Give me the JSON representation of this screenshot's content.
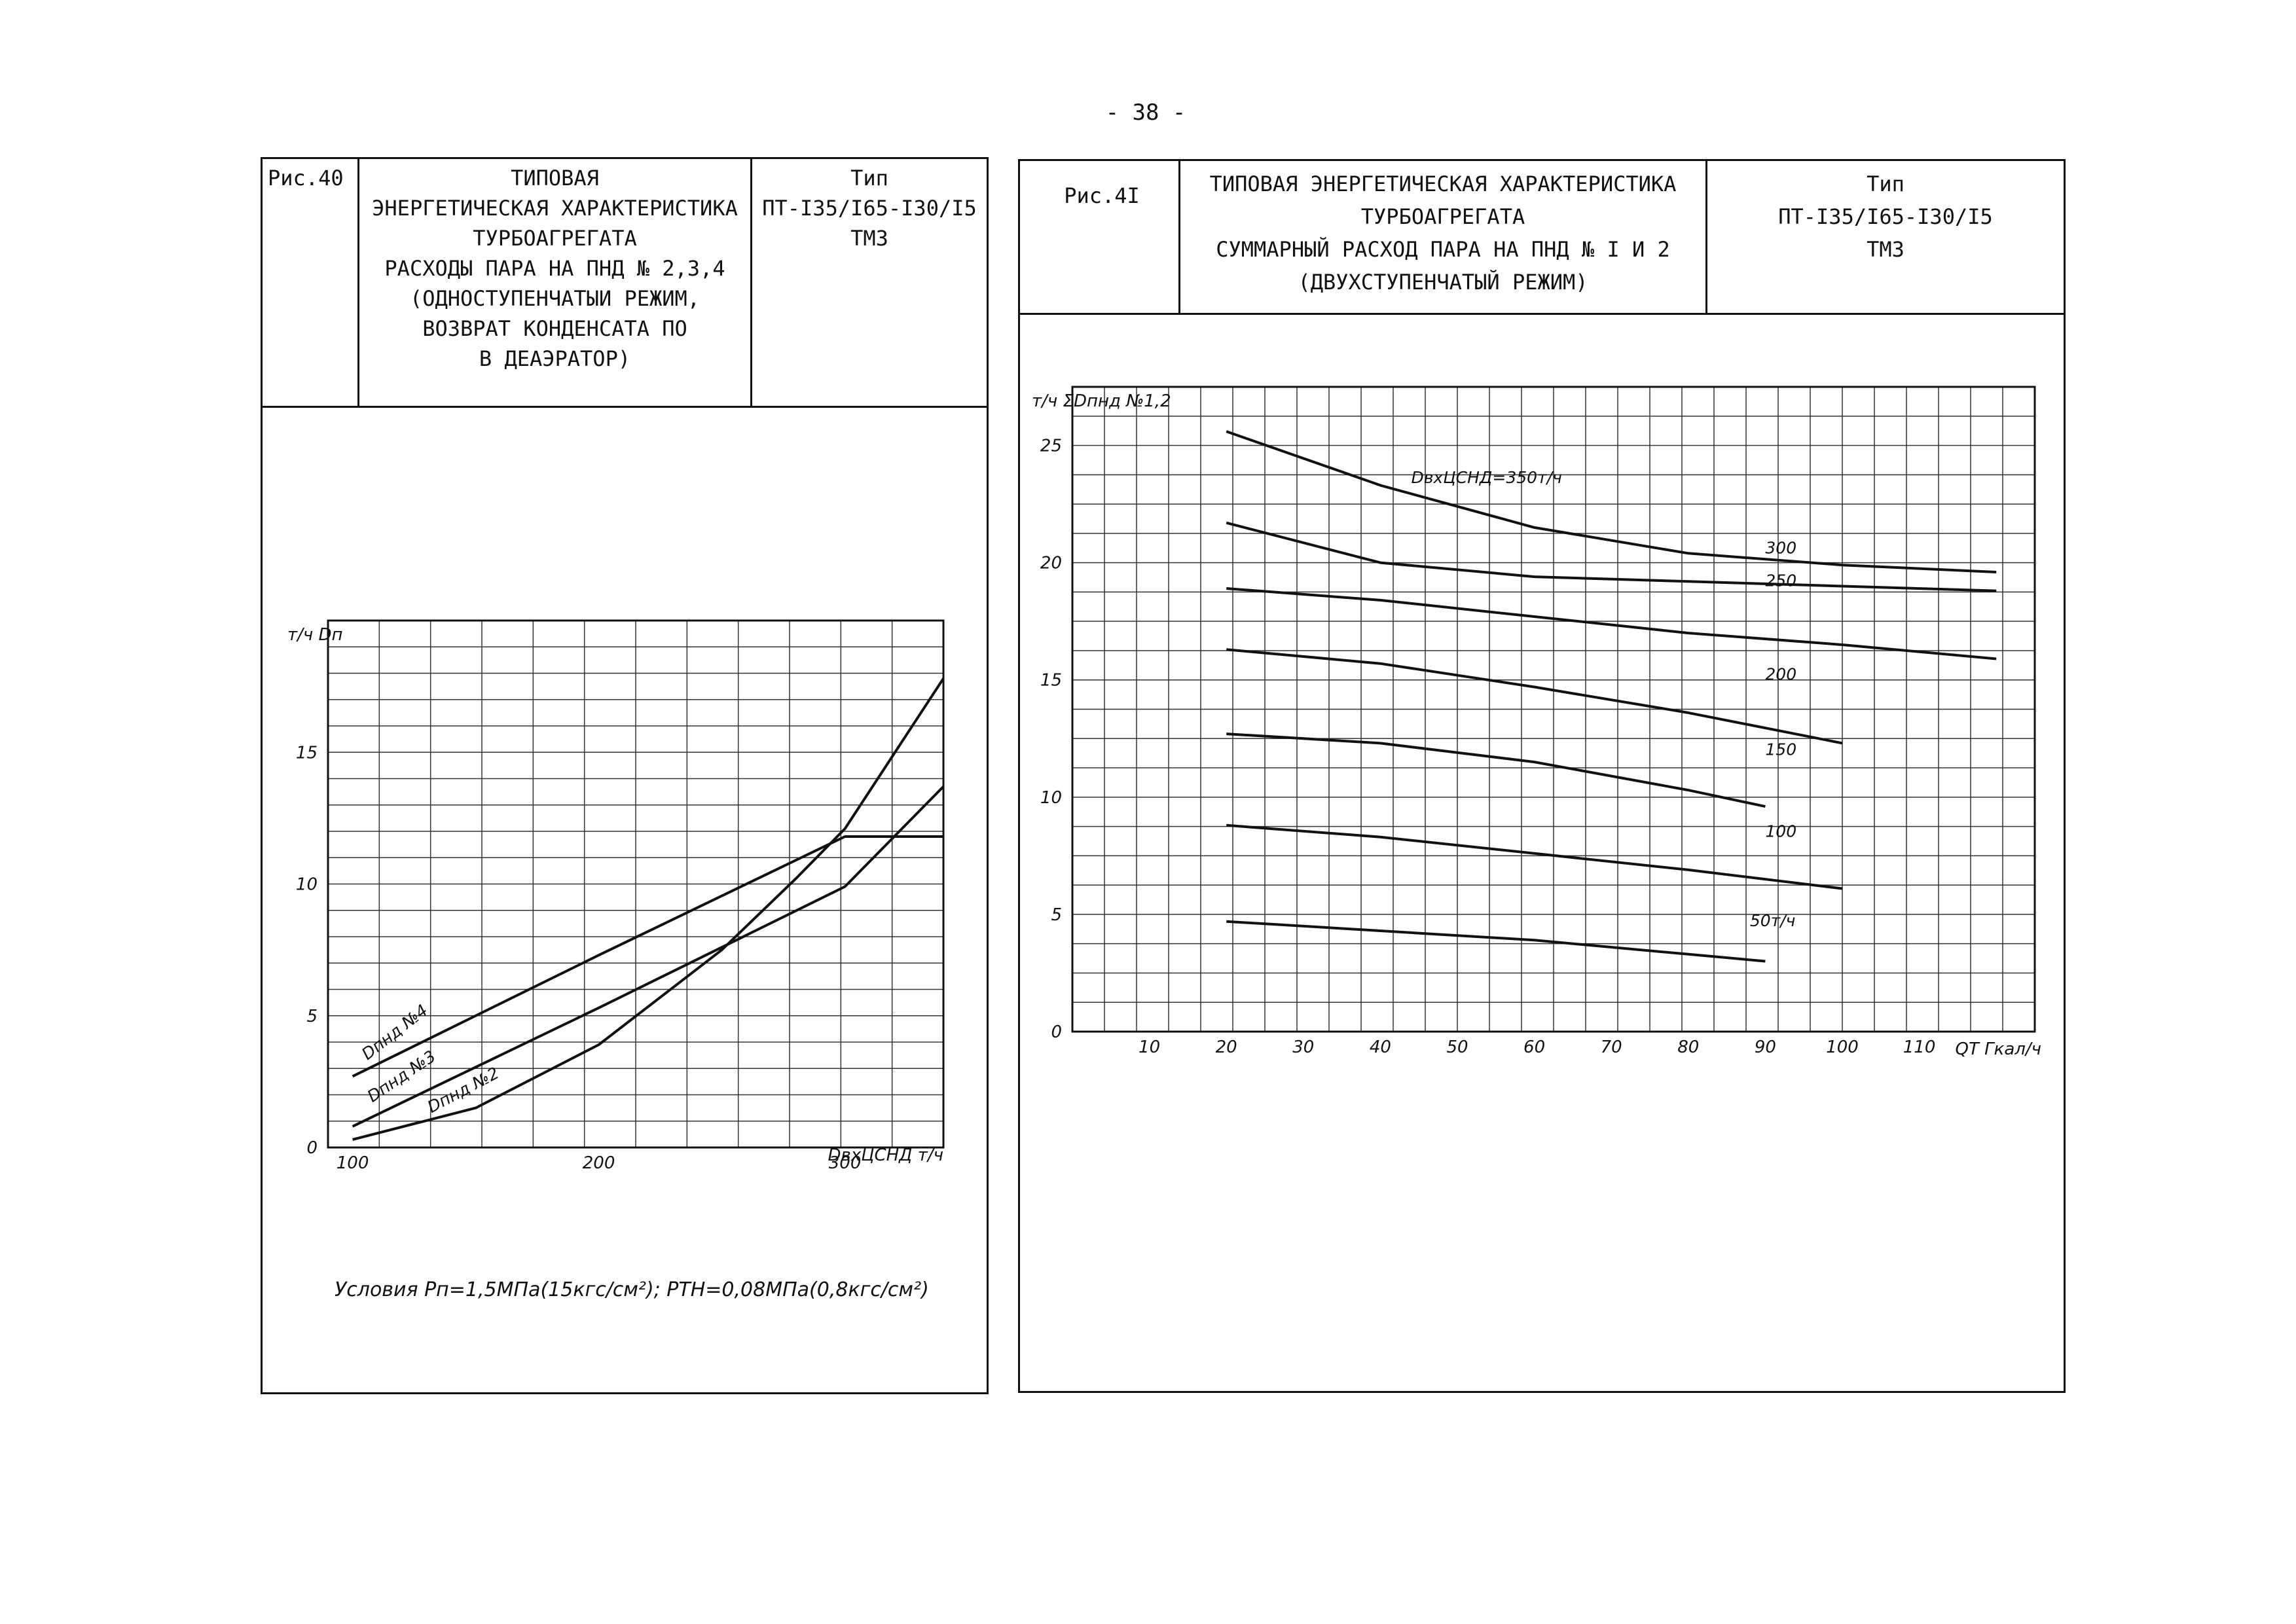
{
  "page_number": "- 38 -",
  "figures": [
    {
      "fig_label": "Рис.40",
      "title_lines": [
        "ТИПОВАЯ",
        "ЭНЕРГЕТИЧЕСКАЯ ХАРАКТЕРИСТИКА",
        "ТУРБОАГРЕГАТА",
        "РАСХОДЫ ПАРА НА ПНД № 2,3,4",
        "(ОДНОСТУПЕНЧАТЫИ РЕЖИМ,",
        "ВОЗВРАТ КОНДЕНСАТА ПО",
        "В ДЕАЭРАТОР)"
      ],
      "type_label": "Тип",
      "type_model": "ПТ-I35/I65-I30/I5",
      "type_maker": "ТМЗ",
      "conditions": "Условия  Pп=1,5МПа(15кгс/см²); PТН=0,08МПа(0,8кгс/см²)"
    },
    {
      "fig_label": "Рис.4I",
      "title_lines": [
        "ТИПОВАЯ ЭНЕРГЕТИЧЕСКАЯ ХАРАКТЕРИСТИКА",
        "ТУРБОАГРЕГАТА",
        "СУММАРНЫЙ РАСХОД ПАРА НА ПНД № I И 2",
        "(ДВУХСТУПЕНЧАТЫЙ РЕЖИМ)"
      ],
      "type_label": "Тип",
      "type_model": "ПТ-I35/I65-I30/I5",
      "type_maker": "ТМЗ"
    }
  ],
  "chart_data": [
    {
      "type": "line",
      "xlabel": "DвхЦСНД т/ч",
      "ylabel": "т/ч Dп",
      "xlim": [
        90,
        340
      ],
      "ylim": [
        0,
        20
      ],
      "x_ticks": [
        "100",
        "200",
        "300"
      ],
      "y_ticks": [
        "0",
        "5",
        "10",
        "15"
      ],
      "series": [
        {
          "name": "Dпнд №4",
          "x": [
            100,
            200,
            300,
            340
          ],
          "y": [
            2.7,
            7.3,
            11.8,
            11.8
          ]
        },
        {
          "name": "Dпнд №3",
          "x": [
            100,
            200,
            300,
            340
          ],
          "y": [
            0.8,
            5.3,
            9.9,
            13.7
          ]
        },
        {
          "name": "Dпнд №2",
          "x": [
            100,
            150,
            200,
            250,
            280,
            300,
            340
          ],
          "y": [
            0.3,
            1.5,
            3.9,
            7.5,
            10.2,
            12.1,
            17.8
          ]
        }
      ]
    },
    {
      "type": "line",
      "xlabel": "QТ Гкал/ч",
      "ylabel": "т/ч ΣDпнд №1,2",
      "xlim": [
        0,
        125
      ],
      "ylim": [
        0,
        27.5
      ],
      "x_ticks": [
        "10",
        "20",
        "30",
        "40",
        "50",
        "60",
        "70",
        "80",
        "90",
        "100",
        "110"
      ],
      "y_ticks": [
        "0",
        "5",
        "10",
        "15",
        "20",
        "25"
      ],
      "series": [
        {
          "name": "DвхЦСНД=350т/ч",
          "x": [
            20,
            40,
            60,
            80,
            100,
            120
          ],
          "y": [
            25.6,
            23.3,
            21.5,
            20.4,
            19.9,
            19.6
          ]
        },
        {
          "name": "300",
          "x": [
            20,
            40,
            60,
            80,
            100,
            120
          ],
          "y": [
            21.7,
            20.0,
            19.4,
            19.2,
            19.0,
            18.8
          ]
        },
        {
          "name": "250",
          "x": [
            20,
            40,
            60,
            80,
            100,
            120
          ],
          "y": [
            18.9,
            18.4,
            17.7,
            17.0,
            16.5,
            15.9
          ]
        },
        {
          "name": "200",
          "x": [
            20,
            40,
            60,
            80,
            100
          ],
          "y": [
            16.3,
            15.7,
            14.7,
            13.6,
            12.3
          ]
        },
        {
          "name": "150",
          "x": [
            20,
            40,
            60,
            80,
            90
          ],
          "y": [
            12.7,
            12.3,
            11.5,
            10.3,
            9.6
          ]
        },
        {
          "name": "100",
          "x": [
            20,
            40,
            60,
            80,
            100
          ],
          "y": [
            8.8,
            8.3,
            7.6,
            6.9,
            6.1
          ]
        },
        {
          "name": "50т/ч",
          "x": [
            20,
            40,
            60,
            80,
            90
          ],
          "y": [
            4.7,
            4.3,
            3.9,
            3.3,
            3.0
          ]
        }
      ]
    }
  ]
}
